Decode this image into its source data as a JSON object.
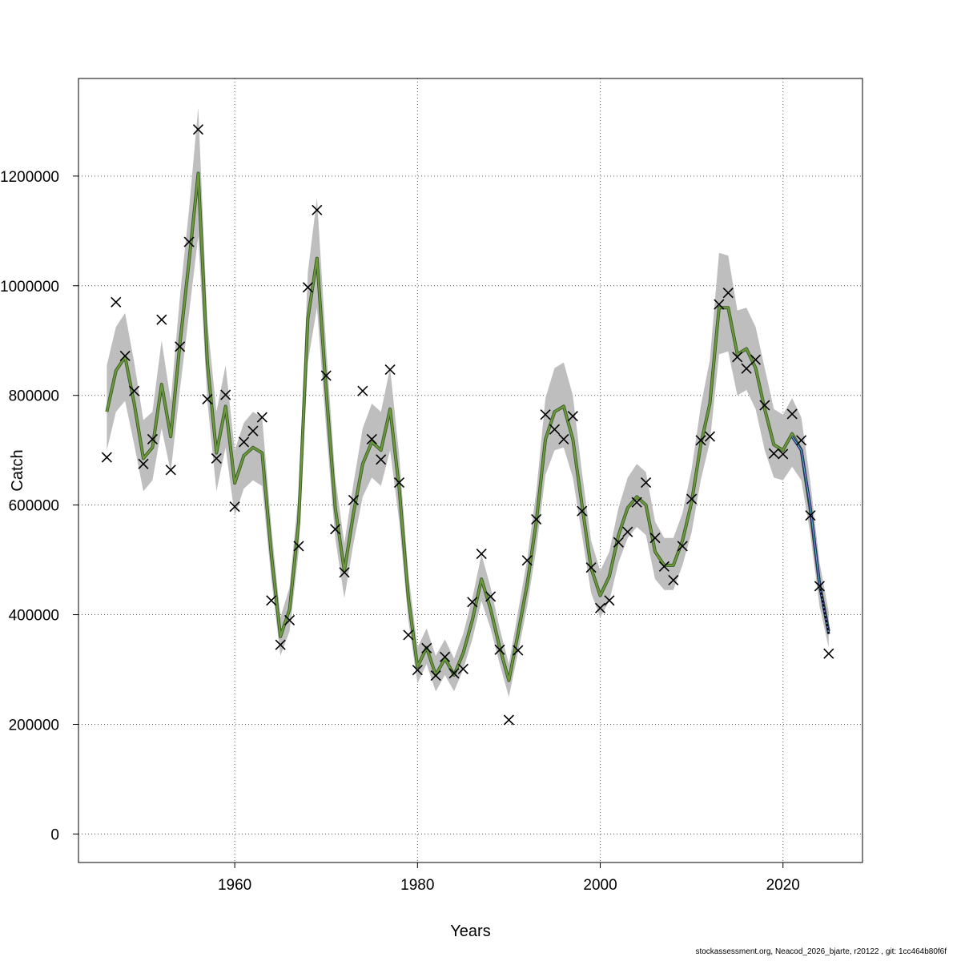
{
  "footer": "stockassessment.org, Neacod_2026_bjarte, r20122 , git: 1cc464b80f6f",
  "chart_data": {
    "type": "line",
    "xlabel": "Years",
    "ylabel": "Catch",
    "xlim": [
      1942.9,
      2028.7
    ],
    "ylim": [
      -52000,
      1378000
    ],
    "x_ticks": [
      1960,
      1980,
      2000,
      2020
    ],
    "y_ticks": [
      0,
      200000,
      400000,
      600000,
      800000,
      1000000,
      1200000
    ],
    "x_tick_labels": [
      "1960",
      "1980",
      "2000",
      "2020"
    ],
    "y_tick_labels": [
      "0",
      "200000",
      "400000",
      "600000",
      "800000",
      "1000000",
      "1200000"
    ],
    "grid": true,
    "colors": {
      "band": "#bebebe",
      "fit_line": "#6c9a3a",
      "fit_outline": "#3a5a2a",
      "projection_line": "#2a2a6a",
      "projection_highlight": "#5bbad5",
      "observed": "#000000"
    },
    "fit": {
      "x": [
        1946,
        1947,
        1948,
        1949,
        1950,
        1951,
        1952,
        1953,
        1954,
        1955,
        1956,
        1957,
        1958,
        1959,
        1960,
        1961,
        1962,
        1963,
        1964,
        1965,
        1966,
        1967,
        1968,
        1969,
        1970,
        1971,
        1972,
        1973,
        1974,
        1975,
        1976,
        1977,
        1978,
        1979,
        1980,
        1981,
        1982,
        1983,
        1984,
        1985,
        1986,
        1987,
        1988,
        1989,
        1990,
        1991,
        1992,
        1993,
        1994,
        1995,
        1996,
        1997,
        1998,
        1999,
        2000,
        2001,
        2002,
        2003,
        2004,
        2005,
        2006,
        2007,
        2008,
        2009,
        2010,
        2011,
        2012,
        2013,
        2014,
        2015,
        2016,
        2017,
        2018,
        2019,
        2020,
        2021,
        2022,
        2023,
        2024,
        2025
      ],
      "y": [
        770000,
        845000,
        870000,
        785000,
        685000,
        705000,
        820000,
        725000,
        895000,
        1045000,
        1205000,
        860000,
        695000,
        780000,
        640000,
        690000,
        705000,
        695000,
        510000,
        360000,
        410000,
        570000,
        940000,
        1050000,
        810000,
        595000,
        480000,
        585000,
        675000,
        715000,
        700000,
        775000,
        630000,
        430000,
        305000,
        340000,
        290000,
        320000,
        290000,
        330000,
        390000,
        465000,
        410000,
        340000,
        280000,
        365000,
        455000,
        570000,
        720000,
        770000,
        780000,
        720000,
        600000,
        485000,
        435000,
        470000,
        545000,
        595000,
        615000,
        600000,
        515000,
        490000,
        490000,
        535000,
        605000,
        710000,
        785000,
        960000,
        960000,
        875000,
        885000,
        850000,
        775000,
        710000,
        700000,
        730000,
        700000,
        590000,
        455000,
        370000
      ],
      "lower": [
        700000,
        770000,
        790000,
        710000,
        625000,
        645000,
        740000,
        660000,
        810000,
        950000,
        1090000,
        790000,
        625000,
        705000,
        580000,
        630000,
        645000,
        635000,
        465000,
        325000,
        370000,
        515000,
        860000,
        960000,
        740000,
        540000,
        430000,
        530000,
        615000,
        650000,
        635000,
        700000,
        570000,
        390000,
        275000,
        310000,
        260000,
        290000,
        260000,
        300000,
        355000,
        425000,
        375000,
        310000,
        250000,
        330000,
        415000,
        520000,
        655000,
        700000,
        705000,
        650000,
        545000,
        440000,
        395000,
        425000,
        495000,
        540000,
        560000,
        545000,
        465000,
        445000,
        445000,
        490000,
        550000,
        645000,
        715000,
        875000,
        880000,
        800000,
        810000,
        775000,
        700000,
        650000,
        645000,
        670000,
        645000,
        545000,
        415000,
        340000
      ],
      "upper": [
        855000,
        925000,
        950000,
        860000,
        755000,
        770000,
        900000,
        790000,
        980000,
        1140000,
        1325000,
        935000,
        770000,
        855000,
        700000,
        750000,
        770000,
        760000,
        560000,
        395000,
        450000,
        625000,
        1025000,
        1160000,
        890000,
        650000,
        530000,
        640000,
        740000,
        785000,
        770000,
        850000,
        690000,
        475000,
        340000,
        375000,
        325000,
        355000,
        320000,
        365000,
        430000,
        510000,
        450000,
        375000,
        310000,
        405000,
        500000,
        625000,
        795000,
        850000,
        860000,
        800000,
        660000,
        535000,
        480000,
        515000,
        595000,
        650000,
        675000,
        660000,
        570000,
        540000,
        540000,
        585000,
        665000,
        780000,
        865000,
        1060000,
        1055000,
        955000,
        960000,
        925000,
        850000,
        775000,
        765000,
        795000,
        760000,
        640000,
        495000,
        405000
      ]
    },
    "projection": {
      "x": [
        2021,
        2022,
        2023,
        2024,
        2025
      ],
      "y": [
        725000,
        700000,
        595000,
        455000,
        365000
      ]
    },
    "observed": {
      "x": [
        1946,
        1947,
        1948,
        1949,
        1950,
        1951,
        1952,
        1953,
        1954,
        1955,
        1956,
        1957,
        1958,
        1959,
        1960,
        1961,
        1962,
        1963,
        1964,
        1965,
        1966,
        1967,
        1968,
        1969,
        1970,
        1971,
        1972,
        1973,
        1974,
        1975,
        1976,
        1977,
        1978,
        1979,
        1980,
        1981,
        1982,
        1983,
        1984,
        1985,
        1986,
        1987,
        1988,
        1989,
        1990,
        1991,
        1992,
        1993,
        1994,
        1995,
        1996,
        1997,
        1998,
        1999,
        2000,
        2001,
        2002,
        2003,
        2004,
        2005,
        2006,
        2007,
        2008,
        2009,
        2010,
        2011,
        2012,
        2013,
        2014,
        2015,
        2016,
        2017,
        2018,
        2019,
        2020,
        2021,
        2022,
        2023,
        2024,
        2025
      ],
      "y": [
        687000,
        970000,
        872000,
        808000,
        675000,
        720000,
        938000,
        664000,
        889000,
        1080000,
        1285000,
        793000,
        685000,
        801000,
        597000,
        715000,
        735000,
        760000,
        426000,
        345000,
        390000,
        525000,
        997000,
        1138000,
        836000,
        556000,
        477000,
        609000,
        808000,
        720000,
        683000,
        847000,
        641000,
        363000,
        299000,
        339000,
        289000,
        323000,
        293000,
        301000,
        423000,
        511000,
        433000,
        336000,
        208000,
        335000,
        499000,
        574000,
        765000,
        738000,
        720000,
        762000,
        589000,
        486000,
        412000,
        426000,
        532000,
        551000,
        605000,
        641000,
        540000,
        488000,
        463000,
        525000,
        611000,
        718000,
        725000,
        966000,
        987000,
        870000,
        849000,
        865000,
        782000,
        694000,
        693000,
        766000,
        718000,
        581000,
        452000,
        329000
      ]
    }
  }
}
